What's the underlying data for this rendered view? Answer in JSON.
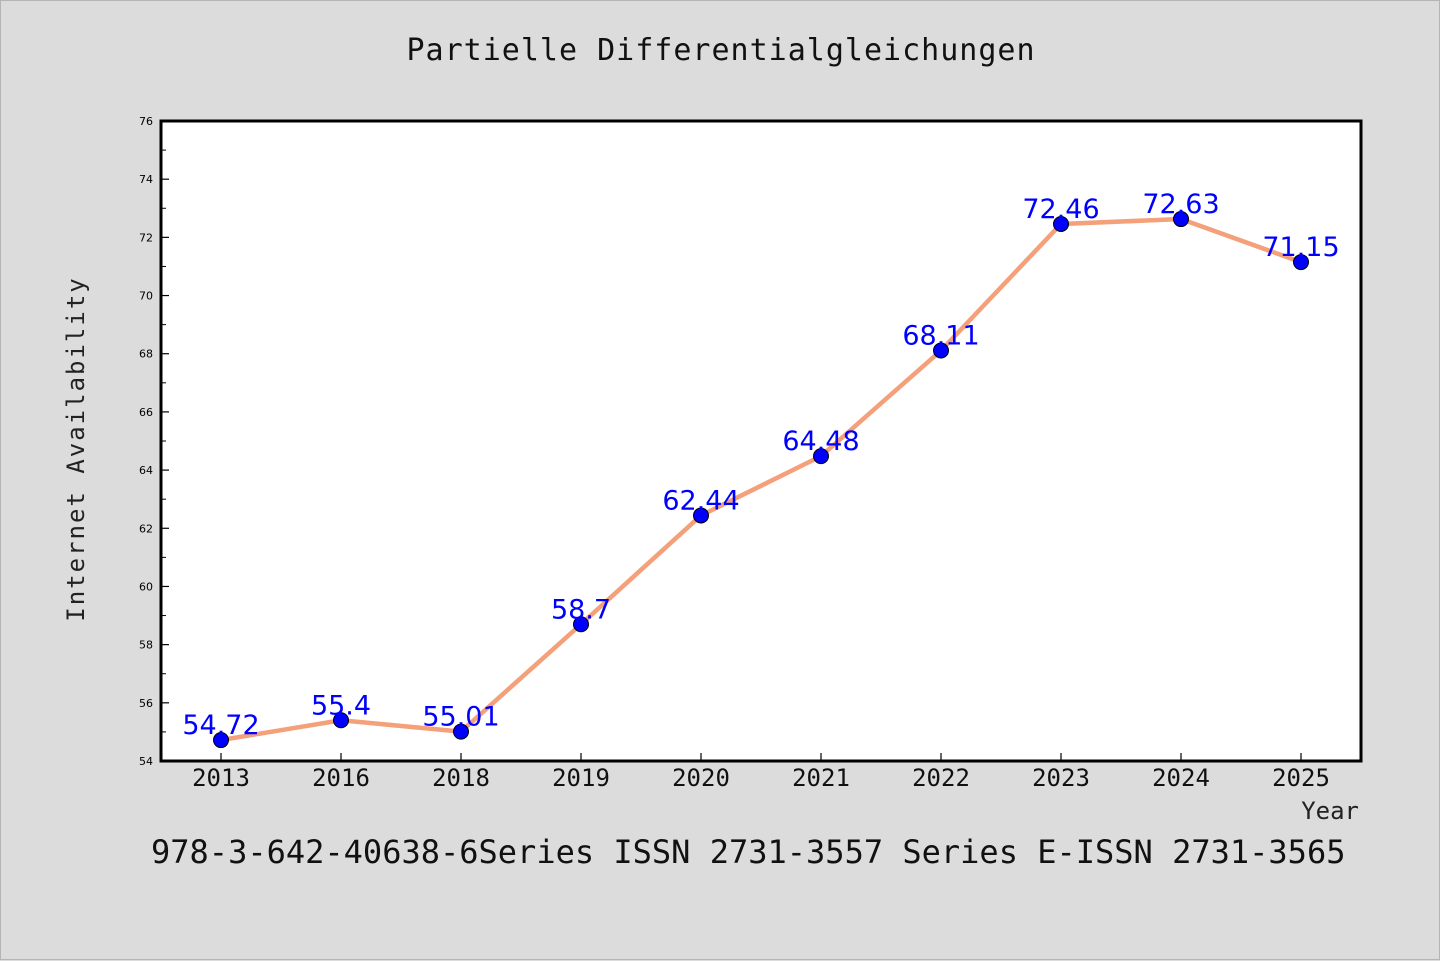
{
  "chart_data": {
    "type": "line",
    "title": "Partielle Differentialgleichungen",
    "xlabel": "Year",
    "ylabel": "Internet Availability",
    "categories": [
      "2013",
      "2016",
      "2018",
      "2019",
      "2020",
      "2021",
      "2022",
      "2023",
      "2024",
      "2025"
    ],
    "series": [
      {
        "values": [
          54.72,
          55.4,
          55.01,
          58.7,
          62.44,
          64.48,
          68.11,
          72.46,
          72.63,
          71.15
        ],
        "data_labels": [
          "54.72",
          "55.4",
          "55.01",
          "58.7",
          "62.44",
          "64.48",
          "68.11",
          "72.46",
          "72.63",
          "71.15"
        ]
      }
    ],
    "ylim": [
      54,
      76
    ],
    "yticks": [
      "54",
      "56",
      "58",
      "60",
      "62",
      "64",
      "66",
      "68",
      "70",
      "72",
      "74",
      "76"
    ],
    "grid": false,
    "colors": {
      "line": "#f4a07a",
      "marker": "#0000ff",
      "data_label": "#0000ff",
      "background": "#dcdcdc",
      "plot_area": "#ffffff"
    }
  },
  "footer": {
    "text": "978-3-642-40638-6Series ISSN 2731-3557 Series E-ISSN 2731-3565"
  }
}
